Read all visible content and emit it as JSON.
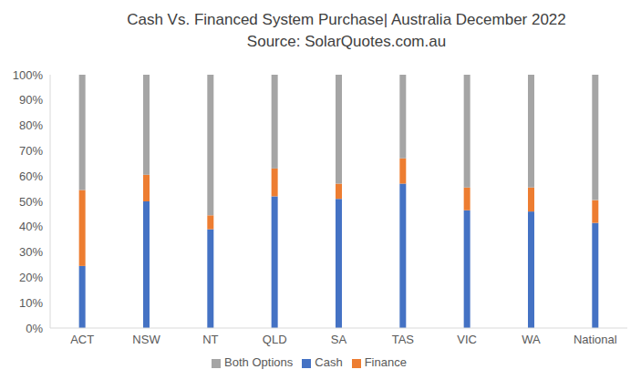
{
  "chart_data": {
    "type": "bar",
    "title": "Cash Vs. Financed System Purchase| Australia December 2022",
    "subtitle": "Source: SolarQuotes.com.au",
    "categories": [
      "ACT",
      "NSW",
      "NT",
      "QLD",
      "SA",
      "TAS",
      "VIC",
      "WA",
      "National"
    ],
    "series": [
      {
        "name": "Cash",
        "color": "#4472c4",
        "values": [
          24.5,
          50,
          39,
          52,
          51,
          57,
          46.5,
          46,
          41.5
        ]
      },
      {
        "name": "Finance",
        "color": "#ed7d31",
        "values": [
          30,
          10.5,
          5.5,
          11,
          6,
          10,
          9,
          9.5,
          9
        ]
      },
      {
        "name": "Both Options",
        "color": "#a5a5a5",
        "values": [
          45.5,
          39.5,
          55.5,
          37,
          43,
          33,
          44.5,
          44.5,
          49.5
        ]
      }
    ],
    "ylim": [
      0,
      100
    ],
    "yticks": [
      {
        "value": 0,
        "label": "0%"
      },
      {
        "value": 10,
        "label": "10%"
      },
      {
        "value": 20,
        "label": "20%"
      },
      {
        "value": 30,
        "label": "30%"
      },
      {
        "value": 40,
        "label": "40%"
      },
      {
        "value": 50,
        "label": "50%"
      },
      {
        "value": 60,
        "label": "60%"
      },
      {
        "value": 70,
        "label": "70%"
      },
      {
        "value": 80,
        "label": "80%"
      },
      {
        "value": 90,
        "label": "90%"
      },
      {
        "value": 100,
        "label": "100%"
      }
    ],
    "stacked": true,
    "grid": false,
    "legend": "bottom"
  }
}
